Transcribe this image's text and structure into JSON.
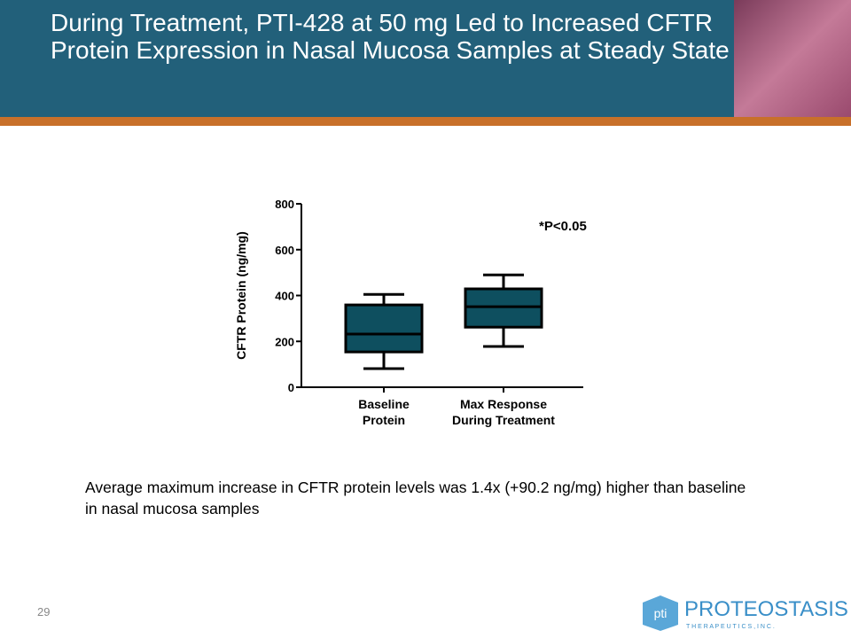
{
  "title": "During Treatment, PTI-428 at 50 mg Led to Increased CFTR Protein Expression in Nasal Mucosa Samples at Steady State",
  "body": "Average maximum increase in CFTR protein levels was 1.4x (+90.2 ng/mg) higher than baseline in nasal mucosa samples",
  "page_number": "29",
  "logo": {
    "mark": "pti",
    "name": "PROTEOSTASIS",
    "tagline": "T H E R A P E U T I C S ,  I N C ."
  },
  "chart_data": {
    "type": "box",
    "ylabel": "CFTR Protein (ng/mg)",
    "annotation": "*P<0.05",
    "categories": [
      "Baseline\nProtein",
      "Max Response\nDuring Treatment"
    ],
    "values": [
      {
        "min": 81,
        "q1": 154,
        "median": 232,
        "q3": 359,
        "max": 405
      },
      {
        "min": 178,
        "q1": 262,
        "median": 351,
        "q3": 429,
        "max": 490
      }
    ],
    "color": "#0e4f5f",
    "ylim": [
      0,
      800
    ],
    "yticks": [
      0,
      200,
      400,
      600,
      800
    ]
  }
}
